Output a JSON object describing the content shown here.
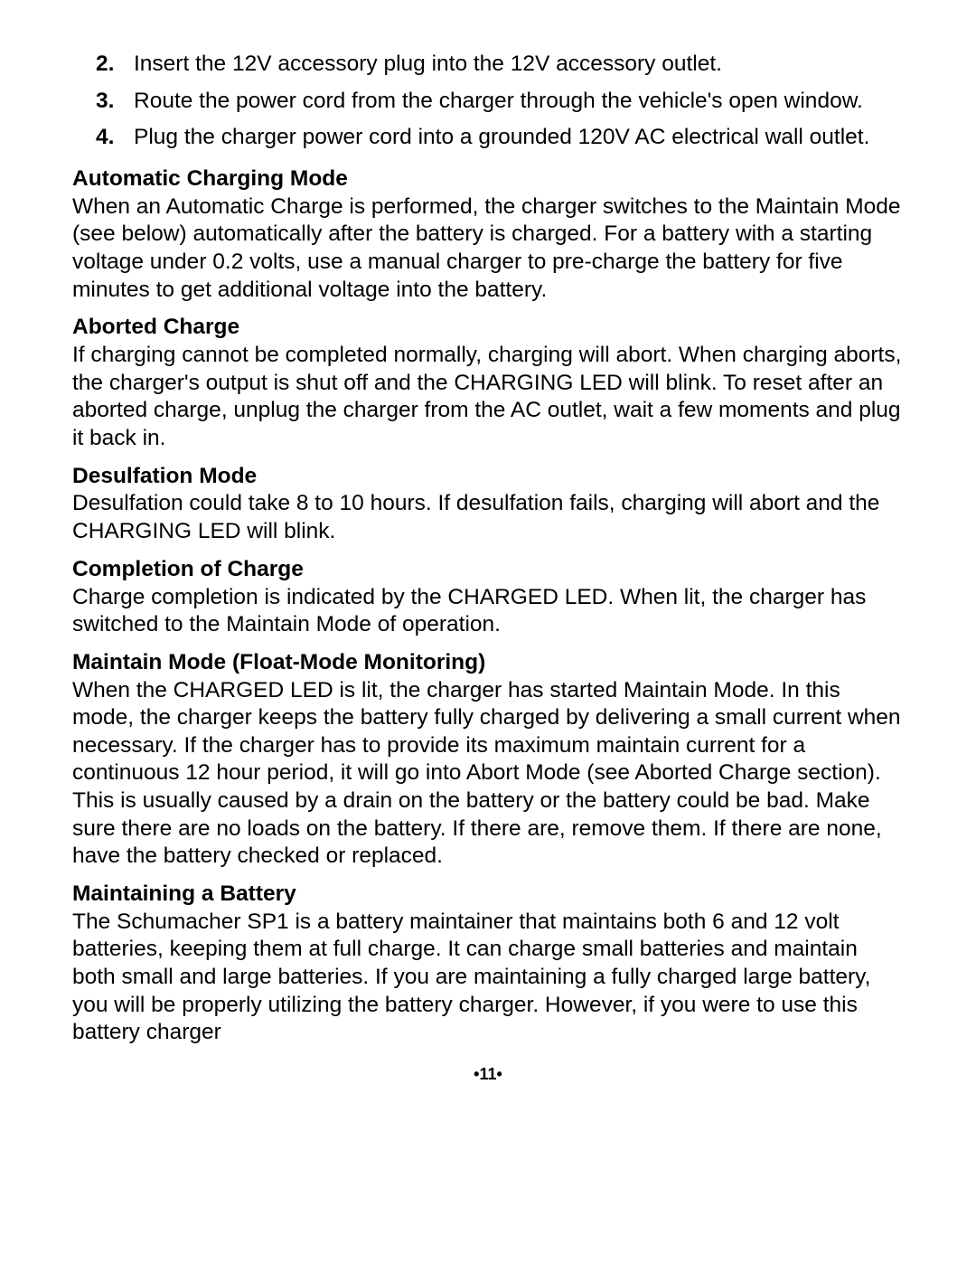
{
  "steps": [
    "Insert the 12V accessory plug into the 12V accessory outlet.",
    "Route the power cord from the charger through the vehicle's open window.",
    "Plug the charger power cord into a grounded 120V AC electrical wall outlet."
  ],
  "sections": [
    {
      "heading": "Automatic Charging Mode",
      "body": "When an Automatic Charge is performed, the charger switches to the Maintain Mode (see below) automatically after the battery is charged. For a battery with a starting voltage under 0.2 volts, use a manual charger to pre-charge the battery for five minutes to get additional voltage into the battery."
    },
    {
      "heading": "Aborted Charge",
      "body": "If charging cannot be completed normally, charging will abort. When charging aborts, the charger's output is shut off and the CHARGING LED will blink. To reset after an aborted charge, unplug the charger from the AC outlet, wait a few moments and plug it back in."
    },
    {
      "heading": "Desulfation Mode",
      "body": "Desulfation could take 8 to 10 hours. If desulfation fails, charging will abort and the CHARGING LED will blink."
    },
    {
      "heading": "Completion of Charge",
      "body": "Charge completion is indicated by the CHARGED LED. When lit, the charger has switched to the Maintain Mode of operation."
    },
    {
      "heading": "Maintain Mode (Float-Mode Monitoring)",
      "body": "When the CHARGED LED is lit, the charger has started Maintain Mode. In this mode, the charger keeps the battery fully charged by delivering a small current when necessary. If the charger has to provide its maximum maintain current for a continuous 12 hour period, it will go into Abort Mode (see Aborted Charge section). This is usually caused by a drain on the battery or the battery could be bad. Make sure there are no loads on the battery. If there are, remove them. If there are none, have the battery checked or replaced."
    },
    {
      "heading": "Maintaining a Battery",
      "body": "The Schumacher SP1 is a battery maintainer that maintains both 6 and 12 volt batteries, keeping them at full charge. It can charge small batteries and maintain both small and large batteries. If you are maintaining a fully charged large battery, you will be properly utilizing the battery charger. However, if you were to use this battery charger"
    }
  ],
  "page_number": "•11•"
}
